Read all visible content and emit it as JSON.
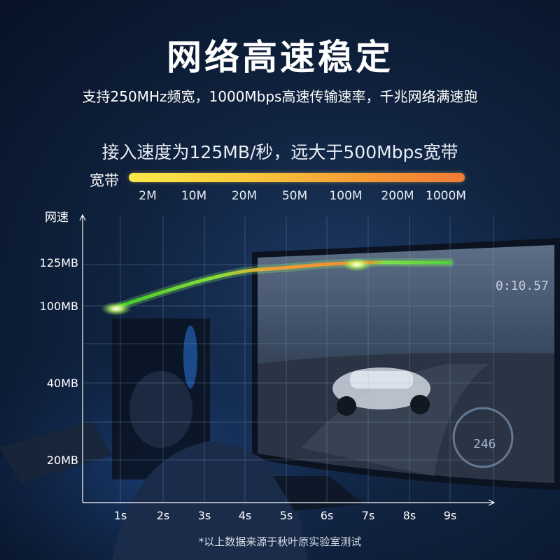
{
  "header": {
    "title": "网络高速稳定",
    "subtitle": "支持250MHz频宽，1000Mbps高速传输速率，千兆网络满速跑",
    "speed_note": "接入速度为125MB/秒，远大于500Mbps宽带"
  },
  "bandwidth_bar": {
    "label": "宽带",
    "ticks": [
      "2M",
      "10M",
      "20M",
      "50M",
      "100M",
      "200M",
      "1000M"
    ],
    "colors": {
      "start": "#f8e948",
      "end": "#f07a36"
    }
  },
  "footnote": "*以上数据来源于秋叶原实验室测试",
  "chart_data": {
    "type": "line",
    "ylabel": "网速",
    "categories": [
      "1s",
      "2s",
      "3s",
      "4s",
      "5s",
      "6s",
      "7s",
      "8s",
      "9s"
    ],
    "y_ticks": [
      "20MB",
      "40MB",
      "100MB",
      "125MB"
    ],
    "series": [
      {
        "x": [
          "1s",
          "2s",
          "3s",
          "4s",
          "5s",
          "6s",
          "7s",
          "8s",
          "9s"
        ],
        "values": [
          100,
          108,
          115,
          120,
          122,
          124,
          125,
          125,
          125
        ]
      }
    ],
    "grid": true,
    "colors": {
      "rising": "#5fd63a",
      "peak": "#f08a2e",
      "glow": "#c9ff6a"
    }
  }
}
